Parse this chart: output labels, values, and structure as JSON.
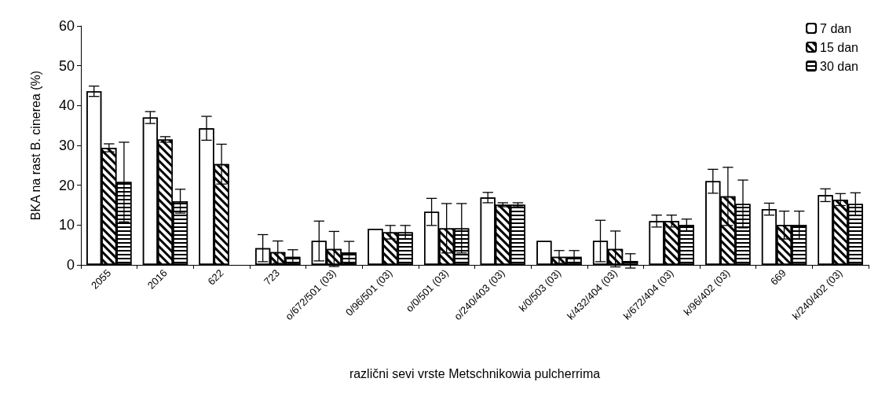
{
  "chart_data": {
    "type": "bar",
    "xlabel": "različni sevi vrste Metschnikowia pulcherrima",
    "ylabel": "BKA na rast B. cinerea (%)",
    "categories": [
      "2055",
      "2016",
      "622",
      "723",
      "o/672/501 (03)",
      "0/96/501 (03)",
      "o/0/501 (03)",
      "o/240/403 (03)",
      "k/0/503 (03)",
      "k/432/404 (03)",
      "k/672/404 (03)",
      "k/96/402 (03)",
      "669",
      "k/240/402 (03)"
    ],
    "series": [
      {
        "name": "7 dan",
        "color": "#ffffff",
        "values": [
          43.6,
          37,
          34.3,
          4.2,
          6,
          9.1,
          13.3,
          16.9,
          6,
          6,
          11,
          21,
          14,
          17.5
        ],
        "errors": [
          1.3,
          1.5,
          3,
          3.4,
          5,
          null,
          3.4,
          1.3,
          null,
          5.2,
          1.5,
          3,
          1.5,
          1.6
        ]
      },
      {
        "name": "15 dan",
        "color": "#ffffff",
        "values": [
          29.4,
          31.5,
          25.3,
          3.2,
          4,
          8.2,
          9.2,
          15.1,
          2,
          4,
          11,
          17.2,
          10,
          16.4
        ],
        "errors": [
          1,
          0.7,
          5,
          2.8,
          4.4,
          1.7,
          6.2,
          0.5,
          1.6,
          4.5,
          1.5,
          7.3,
          3.5,
          1.5
        ]
      },
      {
        "name": "30 dan",
        "color": "#ffffff",
        "values": [
          20.8,
          16,
          0,
          2,
          3.1,
          8.2,
          9.2,
          15.1,
          2,
          1,
          10,
          15.3,
          10,
          15.3
        ],
        "errors": [
          10,
          3,
          null,
          1.8,
          2.8,
          1.7,
          6.2,
          0.5,
          1.6,
          1.8,
          1.5,
          6,
          3.5,
          2.8
        ]
      }
    ],
    "ylim": [
      0,
      60
    ],
    "yticks": [
      0,
      10,
      20,
      30,
      40,
      50,
      60
    ],
    "grid": false,
    "legend": "top right"
  }
}
